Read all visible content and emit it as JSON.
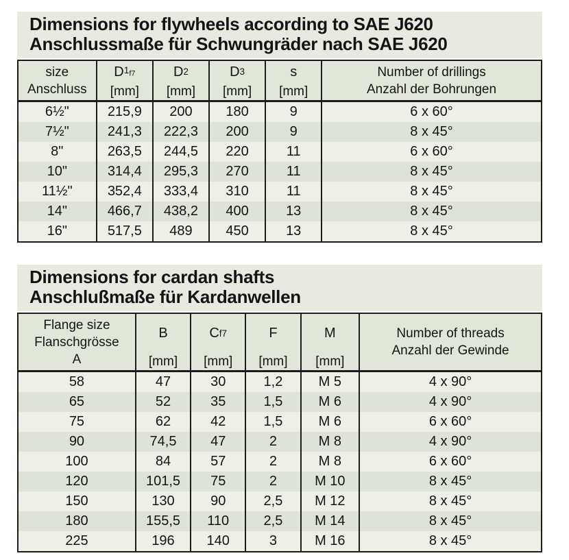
{
  "colors": {
    "page_bg": "#ffffff",
    "panel_bg": "#e6eadf",
    "header_bg": "#e0e6d8",
    "row_light": "#eef0e8",
    "row_dark": "#dde3d6",
    "border": "#1c1c1c",
    "text": "#141414"
  },
  "sections": [
    {
      "id": "flywheels",
      "title_en": "Dimensions for flywheels according to SAE J620",
      "title_de": "Anschlussmaße für Schwungräder nach SAE J620",
      "table": {
        "col_widths_pct": [
          15.0,
          10.8,
          10.7,
          10.8,
          10.7,
          42.0
        ],
        "headers": [
          {
            "lines": [
              "size",
              "Anschluss"
            ]
          },
          {
            "sym": "D",
            "sub": "1",
            "sub2": "f7",
            "unit": "[mm]"
          },
          {
            "sym": "D",
            "sub": "2",
            "unit": "[mm]"
          },
          {
            "sym": "D",
            "sub": "3",
            "unit": "[mm]"
          },
          {
            "sym": "s",
            "unit": "[mm]"
          },
          {
            "lines": [
              "Number of drillings",
              "Anzahl der Bohrungen"
            ]
          }
        ],
        "rows": [
          [
            "6½\"",
            "215,9",
            "200",
            "180",
            "9",
            "6 x 60°"
          ],
          [
            "7½\"",
            "241,3",
            "222,3",
            "200",
            "9",
            "8 x 45°"
          ],
          [
            "8\"",
            "263,5",
            "244,5",
            "220",
            "11",
            "6 x 60°"
          ],
          [
            "10\"",
            "314,4",
            "295,3",
            "270",
            "11",
            "8 x 45°"
          ],
          [
            "11½\"",
            "352,4",
            "333,4",
            "310",
            "11",
            "8 x 45°"
          ],
          [
            "14\"",
            "466,7",
            "438,2",
            "400",
            "13",
            "8 x 45°"
          ],
          [
            "16\"",
            "517,5",
            "489",
            "450",
            "13",
            "8 x 45°"
          ]
        ]
      }
    },
    {
      "id": "cardan-shafts",
      "title_en": "Dimensions for cardan shafts",
      "title_de": "Anschlußmaße für Kardanwellen",
      "table": {
        "col_widths_pct": [
          22.5,
          10.5,
          10.5,
          10.5,
          11.2,
          34.8
        ],
        "headers": [
          {
            "lines": [
              "Flange size",
              "Flanschgrösse",
              "A"
            ]
          },
          {
            "sym": "B",
            "unit": "[mm]"
          },
          {
            "sym": "C",
            "sub": "f7",
            "unit": "[mm]"
          },
          {
            "sym": "F",
            "unit": "[mm]"
          },
          {
            "sym": "M",
            "unit": "[mm]"
          },
          {
            "lines": [
              "Number of threads",
              "Anzahl der Gewinde"
            ]
          }
        ],
        "rows": [
          [
            "58",
            "47",
            "30",
            "1,2",
            "M 5",
            "4 x 90°"
          ],
          [
            "65",
            "52",
            "35",
            "1,5",
            "M 6",
            "4 x 90°"
          ],
          [
            "75",
            "62",
            "42",
            "1,5",
            "M 6",
            "6 x 60°"
          ],
          [
            "90",
            "74,5",
            "47",
            "2",
            "M 8",
            "4 x 90°"
          ],
          [
            "100",
            "84",
            "57",
            "2",
            "M 8",
            "6 x 60°"
          ],
          [
            "120",
            "101,5",
            "75",
            "2",
            "M 10",
            "8 x 45°"
          ],
          [
            "150",
            "130",
            "90",
            "2,5",
            "M 12",
            "8 x 45°"
          ],
          [
            "180",
            "155,5",
            "110",
            "2,5",
            "M 14",
            "8 x 45°"
          ],
          [
            "225",
            "196",
            "140",
            "3",
            "M 16",
            "8 x 45°"
          ]
        ]
      }
    }
  ]
}
